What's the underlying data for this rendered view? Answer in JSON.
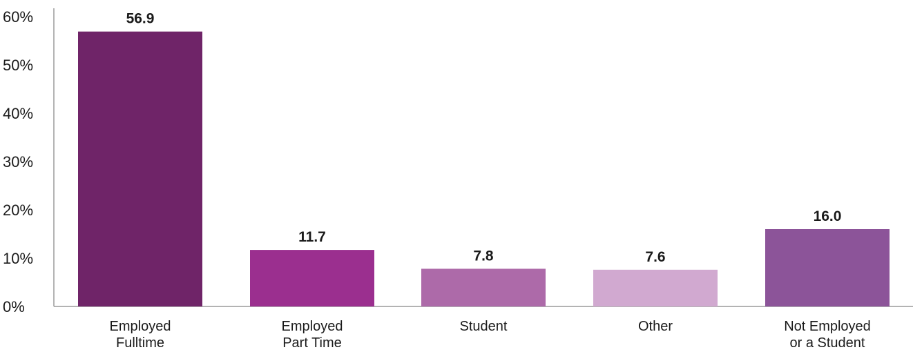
{
  "chart_data": {
    "type": "bar",
    "categories": [
      [
        "Employed",
        "Fulltime"
      ],
      [
        "Employed",
        "Part Time"
      ],
      [
        "Student"
      ],
      [
        "Other"
      ],
      [
        "Not Employed",
        "or a Student"
      ]
    ],
    "values": [
      56.9,
      11.7,
      7.8,
      7.6,
      16.0
    ],
    "data_labels": [
      "56.9",
      "11.7",
      "7.8",
      "7.6",
      "16.0"
    ],
    "bar_colors": [
      "#6f2468",
      "#9b2f8f",
      "#ad6aa9",
      "#d1a9d0",
      "#8c5499"
    ],
    "ylim": [
      0,
      60
    ],
    "yticks": [
      0,
      10,
      20,
      30,
      40,
      50,
      60
    ],
    "ytick_labels": [
      "0%",
      "10%",
      "20%",
      "30%",
      "40%",
      "50%",
      "60%"
    ],
    "grid": false,
    "legend": "none"
  }
}
